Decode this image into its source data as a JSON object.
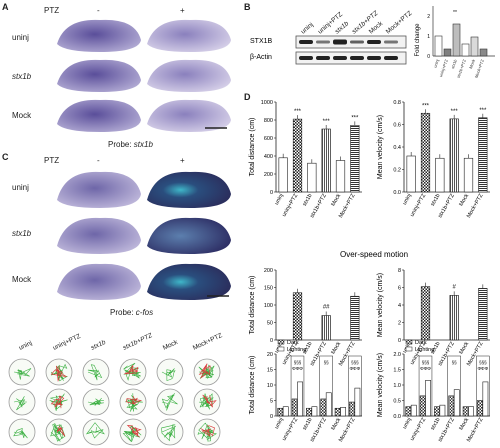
{
  "panels": {
    "A": "A",
    "B": "B",
    "C": "C",
    "D": "D"
  },
  "panelA": {
    "ptz_label": "PTZ",
    "minus": "-",
    "plus": "+",
    "rows": [
      {
        "label": "uninj",
        "italic": false
      },
      {
        "label": "stx1b",
        "italic": true
      },
      {
        "label": "Mock",
        "italic": false
      }
    ],
    "probe_prefix": "Probe: ",
    "probe_gene": "stx1b"
  },
  "panelB": {
    "lanes": [
      "uninj",
      "uninj+PTZ",
      "stx1b",
      "stx1b+PTZ",
      "Mock",
      "Mock+PTZ"
    ],
    "bands": [
      "STX1B",
      "β-Actin"
    ],
    "chart": {
      "ylabel": "Fold change",
      "yticks": [
        "0",
        "1",
        "2"
      ],
      "values": [
        1.0,
        0.35,
        1.6,
        0.6,
        0.95,
        0.35
      ],
      "sig": "**"
    }
  },
  "panelC": {
    "ptz_label": "PTZ",
    "minus": "-",
    "plus": "+",
    "rows": [
      {
        "label": "uninj",
        "italic": false
      },
      {
        "label": "stx1b",
        "italic": true
      },
      {
        "label": "Mock",
        "italic": false
      }
    ],
    "probe_prefix": "Probe: ",
    "probe_gene": "c-fos",
    "track_cols": [
      "uninj",
      "uninj+PTZ",
      "stx1b",
      "stx1b+PTZ",
      "Mock",
      "Mock+PTZ"
    ]
  },
  "panelD": {
    "categories": [
      "uninj",
      "uninj+PTZ",
      "stx1b",
      "stx1b+PTZ",
      "Mock",
      "Mock+PTZ"
    ],
    "section2_title": "Over-speed motion",
    "legend": {
      "dark": "Dark",
      "lighting": "Lighting"
    },
    "sig": {
      "triple": "***",
      "dbl_hash": "##",
      "hash": "#",
      "s1": "§§§",
      "s2": "§§",
      "phi": "ΦΦΦ"
    }
  },
  "chart_data": [
    {
      "type": "bar",
      "ylabel": "Total distance (cm)",
      "categories": [
        "uninj",
        "uninj+PTZ",
        "stx1b",
        "stx1b+PTZ",
        "Mock",
        "Mock+PTZ"
      ],
      "values": [
        380,
        810,
        320,
        700,
        350,
        740
      ],
      "ylim": [
        0,
        1000
      ],
      "yticks": [
        "0",
        "200",
        "400",
        "600",
        "800",
        "1000"
      ]
    },
    {
      "type": "bar",
      "ylabel": "Mean velocity (cm/s)",
      "categories": [
        "uninj",
        "uninj+PTZ",
        "stx1b",
        "stx1b+PTZ",
        "Mock",
        "Mock+PTZ"
      ],
      "values": [
        0.32,
        0.7,
        0.3,
        0.65,
        0.3,
        0.66
      ],
      "ylim": [
        0,
        0.8
      ],
      "yticks": [
        "0.0",
        "0.2",
        "0.4",
        "0.6",
        "0.8"
      ]
    },
    {
      "type": "bar",
      "ylabel": "Total distance (cm)",
      "categories": [
        "uninj",
        "uninj+PTZ",
        "stx1b",
        "stx1b+PTZ",
        "Mock",
        "Mock+PTZ"
      ],
      "values": [
        0,
        135,
        0,
        70,
        0,
        125
      ],
      "ylim": [
        0,
        200
      ],
      "yticks": [
        "0",
        "50",
        "100",
        "150",
        "200"
      ]
    },
    {
      "type": "bar",
      "ylabel": "Mean velocity (cm/s)",
      "categories": [
        "uninj",
        "uninj+PTZ",
        "stx1b",
        "stx1b+PTZ",
        "Mock",
        "Mock+PTZ"
      ],
      "values": [
        0,
        6.1,
        0,
        5.1,
        0,
        5.9
      ],
      "ylim": [
        0,
        8
      ],
      "yticks": [
        "0",
        "2",
        "4",
        "6",
        "8"
      ]
    },
    {
      "type": "bar",
      "ylabel": "Total distance (cm)",
      "categories": [
        "uninj",
        "uninj+PTZ",
        "stx1b",
        "stx1b+PTZ",
        "Mock",
        "Mock+PTZ"
      ],
      "series": [
        {
          "name": "Dark",
          "values": [
            2.5,
            5.5,
            2.5,
            5.5,
            2.5,
            4.5
          ]
        },
        {
          "name": "Lighting",
          "values": [
            3.0,
            11.0,
            3.0,
            7.5,
            2.8,
            9.0
          ]
        }
      ],
      "ylim": [
        0,
        20
      ],
      "yticks": [
        "0",
        "5",
        "10",
        "15",
        "20"
      ]
    },
    {
      "type": "bar",
      "ylabel": "Mean velocity (cm/s)",
      "categories": [
        "uninj",
        "uninj+PTZ",
        "stx1b",
        "stx1b+PTZ",
        "Mock",
        "Mock+PTZ"
      ],
      "series": [
        {
          "name": "Dark",
          "values": [
            0.3,
            0.65,
            0.3,
            0.65,
            0.3,
            0.5
          ]
        },
        {
          "name": "Lighting",
          "values": [
            0.35,
            1.15,
            0.35,
            0.85,
            0.3,
            1.1
          ]
        }
      ],
      "ylim": [
        0,
        2.0
      ],
      "yticks": [
        "0.0",
        "0.5",
        "1.0",
        "1.5",
        "2.0"
      ]
    }
  ]
}
